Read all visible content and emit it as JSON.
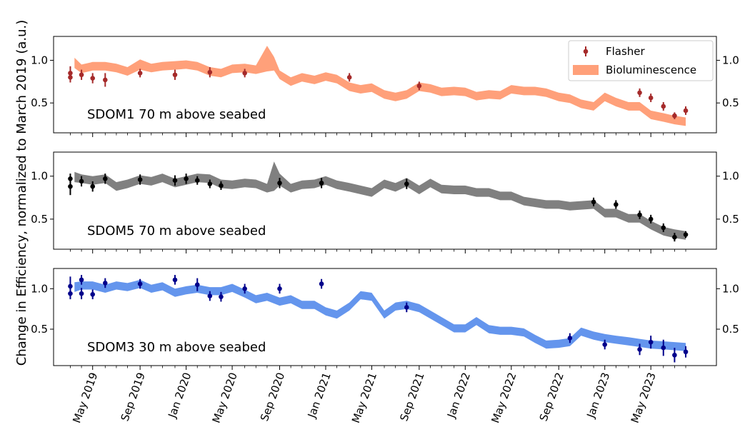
{
  "figure": {
    "ylabel": "Change in Efficiency, normalized to March 2019 (a.u.)",
    "legend": {
      "flasher_label": "Flasher",
      "bio_label": "Bioluminescence",
      "placement": "top-right of first panel"
    }
  },
  "chart_data": [
    {
      "type": "line",
      "panel_label": "SDOM1 70 m above seabed",
      "band_color": "#FFA07A",
      "flasher_color": "#A52A2A",
      "ylim": [
        0.15,
        1.28
      ],
      "yticks": [
        0.5,
        1.0
      ],
      "ytick_labels": [
        "0.5",
        "1.0"
      ],
      "band_x": [
        2019.2,
        2019.25,
        2019.33,
        2019.42,
        2019.5,
        2019.58,
        2019.67,
        2019.75,
        2019.83,
        2019.92,
        2020.0,
        2020.08,
        2020.17,
        2020.25,
        2020.33,
        2020.42,
        2020.5,
        2020.58,
        2020.63,
        2020.67,
        2020.75,
        2020.83,
        2020.92,
        2021.0,
        2021.08,
        2021.17,
        2021.25,
        2021.33,
        2021.42,
        2021.5,
        2021.58,
        2021.67,
        2021.75,
        2021.83,
        2021.92,
        2022.0,
        2022.08,
        2022.17,
        2022.25,
        2022.33,
        2022.42,
        2022.5,
        2022.58,
        2022.67,
        2022.75,
        2022.83,
        2022.92,
        2023.0,
        2023.08,
        2023.17,
        2023.25,
        2023.33,
        2023.42,
        2023.5,
        2023.58
      ],
      "band_mid": [
        0.97,
        0.9,
        0.93,
        0.93,
        0.91,
        0.87,
        0.95,
        0.91,
        0.93,
        0.94,
        0.95,
        0.93,
        0.87,
        0.85,
        0.9,
        0.91,
        0.89,
        1.02,
        0.96,
        0.83,
        0.75,
        0.8,
        0.77,
        0.81,
        0.78,
        0.69,
        0.66,
        0.68,
        0.6,
        0.57,
        0.6,
        0.69,
        0.67,
        0.63,
        0.64,
        0.63,
        0.58,
        0.6,
        0.59,
        0.66,
        0.64,
        0.64,
        0.62,
        0.57,
        0.55,
        0.49,
        0.46,
        0.57,
        0.51,
        0.46,
        0.46,
        0.36,
        0.33,
        0.3,
        0.28
      ],
      "band_half": [
        0.06,
        0.05,
        0.05,
        0.05,
        0.05,
        0.05,
        0.06,
        0.05,
        0.05,
        0.05,
        0.05,
        0.05,
        0.05,
        0.05,
        0.05,
        0.05,
        0.05,
        0.15,
        0.08,
        0.05,
        0.05,
        0.05,
        0.05,
        0.05,
        0.05,
        0.05,
        0.05,
        0.05,
        0.05,
        0.05,
        0.05,
        0.05,
        0.05,
        0.05,
        0.05,
        0.05,
        0.05,
        0.05,
        0.05,
        0.05,
        0.05,
        0.05,
        0.05,
        0.05,
        0.05,
        0.05,
        0.05,
        0.05,
        0.05,
        0.05,
        0.05,
        0.05,
        0.05,
        0.05,
        0.05
      ],
      "flasher_x": [
        2019.17,
        2019.17,
        2019.25,
        2019.33,
        2019.42,
        2019.67,
        2019.92,
        2020.17,
        2020.42,
        2021.17,
        2021.67,
        2023.25,
        2023.33,
        2023.42,
        2023.5,
        2023.58
      ],
      "flasher_y": [
        0.85,
        0.8,
        0.83,
        0.79,
        0.77,
        0.85,
        0.83,
        0.86,
        0.85,
        0.8,
        0.7,
        0.62,
        0.56,
        0.46,
        0.35,
        0.41
      ],
      "flasher_err": [
        0.08,
        0.06,
        0.06,
        0.06,
        0.08,
        0.05,
        0.06,
        0.06,
        0.05,
        0.05,
        0.05,
        0.05,
        0.05,
        0.05,
        0.04,
        0.05
      ]
    },
    {
      "type": "line",
      "panel_label": "SDOM5 70 m above seabed",
      "band_color": "#808080",
      "flasher_color": "#000000",
      "ylim": [
        0.15,
        1.28
      ],
      "yticks": [
        0.5,
        1.0
      ],
      "ytick_labels": [
        "0.5",
        "1.0"
      ],
      "band_x": [
        2019.2,
        2019.25,
        2019.33,
        2019.42,
        2019.5,
        2019.58,
        2019.67,
        2019.75,
        2019.83,
        2019.92,
        2020.0,
        2020.08,
        2020.17,
        2020.25,
        2020.33,
        2020.42,
        2020.5,
        2020.58,
        2020.63,
        2020.67,
        2020.75,
        2020.83,
        2020.92,
        2021.0,
        2021.08,
        2021.17,
        2021.25,
        2021.33,
        2021.42,
        2021.5,
        2021.58,
        2021.67,
        2021.75,
        2021.83,
        2021.92,
        2022.0,
        2022.08,
        2022.17,
        2022.25,
        2022.33,
        2022.42,
        2022.5,
        2022.58,
        2022.67,
        2022.75,
        2022.83,
        2022.92,
        2023.0,
        2023.08,
        2023.17,
        2023.25,
        2023.33,
        2023.42,
        2023.5,
        2023.58
      ],
      "band_mid": [
        0.99,
        0.97,
        0.95,
        0.97,
        0.88,
        0.91,
        0.96,
        0.94,
        0.98,
        0.92,
        0.95,
        0.98,
        0.97,
        0.91,
        0.9,
        0.92,
        0.91,
        0.86,
        1.0,
        0.96,
        0.86,
        0.9,
        0.91,
        0.95,
        0.9,
        0.87,
        0.84,
        0.81,
        0.91,
        0.87,
        0.93,
        0.84,
        0.92,
        0.85,
        0.84,
        0.84,
        0.81,
        0.81,
        0.77,
        0.77,
        0.71,
        0.69,
        0.67,
        0.67,
        0.65,
        0.66,
        0.67,
        0.57,
        0.57,
        0.51,
        0.51,
        0.43,
        0.36,
        0.33,
        0.31
      ],
      "band_half": [
        0.06,
        0.05,
        0.05,
        0.05,
        0.05,
        0.05,
        0.05,
        0.05,
        0.05,
        0.05,
        0.05,
        0.05,
        0.05,
        0.05,
        0.05,
        0.05,
        0.05,
        0.05,
        0.17,
        0.07,
        0.05,
        0.05,
        0.05,
        0.05,
        0.05,
        0.05,
        0.05,
        0.05,
        0.05,
        0.05,
        0.05,
        0.05,
        0.05,
        0.05,
        0.05,
        0.05,
        0.05,
        0.05,
        0.05,
        0.05,
        0.05,
        0.05,
        0.05,
        0.05,
        0.05,
        0.05,
        0.05,
        0.05,
        0.05,
        0.05,
        0.05,
        0.05,
        0.05,
        0.05,
        0.05
      ],
      "flasher_x": [
        2019.17,
        2019.17,
        2019.25,
        2019.33,
        2019.42,
        2019.67,
        2019.92,
        2020.0,
        2020.08,
        2020.17,
        2020.25,
        2020.67,
        2020.97,
        2021.58,
        2022.92,
        2023.08,
        2023.25,
        2023.33,
        2023.42,
        2023.5,
        2023.58
      ],
      "flasher_y": [
        0.97,
        0.88,
        0.94,
        0.88,
        0.97,
        0.96,
        0.95,
        0.97,
        0.95,
        0.91,
        0.89,
        0.92,
        0.92,
        0.91,
        0.7,
        0.67,
        0.55,
        0.5,
        0.4,
        0.29,
        0.32
      ],
      "flasher_err": [
        0.06,
        0.1,
        0.06,
        0.06,
        0.06,
        0.06,
        0.06,
        0.06,
        0.05,
        0.05,
        0.05,
        0.06,
        0.06,
        0.06,
        0.05,
        0.05,
        0.05,
        0.05,
        0.05,
        0.05,
        0.04
      ]
    },
    {
      "type": "line",
      "panel_label": "SDOM3 30 m above seabed",
      "band_color": "#6495ED",
      "flasher_color": "#00008B",
      "ylim": [
        0.05,
        1.25
      ],
      "yticks": [
        0.5,
        1.0
      ],
      "ytick_labels": [
        "0.5",
        "1.0"
      ],
      "band_x": [
        2019.2,
        2019.25,
        2019.33,
        2019.42,
        2019.5,
        2019.58,
        2019.67,
        2019.75,
        2019.83,
        2019.92,
        2020.0,
        2020.08,
        2020.17,
        2020.25,
        2020.33,
        2020.42,
        2020.5,
        2020.58,
        2020.67,
        2020.75,
        2020.83,
        2020.92,
        2021.0,
        2021.08,
        2021.17,
        2021.25,
        2021.33,
        2021.42,
        2021.5,
        2021.58,
        2021.67,
        2021.75,
        2021.83,
        2021.92,
        2022.0,
        2022.08,
        2022.17,
        2022.25,
        2022.33,
        2022.42,
        2022.5,
        2022.58,
        2022.67,
        2022.75,
        2022.83,
        2022.92,
        2023.0,
        2023.08,
        2023.17,
        2023.25,
        2023.33,
        2023.42,
        2023.5,
        2023.58
      ],
      "band_mid": [
        1.02,
        1.04,
        1.04,
        1.0,
        1.04,
        1.02,
        1.06,
        1.0,
        1.03,
        0.95,
        0.98,
        1.0,
        0.97,
        0.97,
        1.01,
        0.94,
        0.87,
        0.9,
        0.84,
        0.87,
        0.8,
        0.8,
        0.72,
        0.68,
        0.78,
        0.92,
        0.9,
        0.68,
        0.78,
        0.8,
        0.76,
        0.68,
        0.6,
        0.51,
        0.51,
        0.6,
        0.5,
        0.48,
        0.48,
        0.46,
        0.38,
        0.31,
        0.32,
        0.34,
        0.47,
        0.42,
        0.39,
        0.37,
        0.35,
        0.33,
        0.31,
        0.3,
        0.29,
        0.28
      ],
      "band_half": [
        0.06,
        0.05,
        0.05,
        0.05,
        0.05,
        0.05,
        0.05,
        0.05,
        0.05,
        0.05,
        0.05,
        0.05,
        0.05,
        0.05,
        0.05,
        0.05,
        0.05,
        0.05,
        0.05,
        0.05,
        0.05,
        0.05,
        0.05,
        0.05,
        0.05,
        0.05,
        0.05,
        0.05,
        0.05,
        0.05,
        0.05,
        0.05,
        0.05,
        0.05,
        0.05,
        0.05,
        0.05,
        0.05,
        0.05,
        0.05,
        0.05,
        0.05,
        0.05,
        0.05,
        0.05,
        0.05,
        0.05,
        0.05,
        0.05,
        0.05,
        0.05,
        0.05,
        0.05,
        0.05
      ],
      "flasher_x": [
        2019.17,
        2019.17,
        2019.25,
        2019.25,
        2019.33,
        2019.42,
        2019.67,
        2019.92,
        2020.08,
        2020.17,
        2020.25,
        2020.42,
        2020.67,
        2020.97,
        2021.58,
        2022.75,
        2023.0,
        2023.25,
        2023.33,
        2023.42,
        2023.5,
        2023.58
      ],
      "flasher_y": [
        1.03,
        0.94,
        1.11,
        0.94,
        0.93,
        1.07,
        1.06,
        1.11,
        1.05,
        0.91,
        0.9,
        1.0,
        1.0,
        1.06,
        0.77,
        0.39,
        0.31,
        0.25,
        0.34,
        0.27,
        0.18,
        0.22
      ],
      "flasher_err": [
        0.12,
        0.07,
        0.06,
        0.07,
        0.06,
        0.06,
        0.06,
        0.06,
        0.08,
        0.06,
        0.06,
        0.06,
        0.06,
        0.06,
        0.06,
        0.06,
        0.06,
        0.07,
        0.08,
        0.1,
        0.09,
        0.07
      ]
    }
  ],
  "x_axis": {
    "xlim": [
      2019.05,
      2023.8
    ],
    "ticks": [
      2019.33,
      2019.67,
      2020.0,
      2020.33,
      2020.67,
      2021.0,
      2021.33,
      2021.67,
      2022.0,
      2022.33,
      2022.67,
      2023.0,
      2023.33
    ],
    "tick_labels": [
      "May 2019",
      "Sep 2019",
      "Jan 2020",
      "May 2020",
      "Sep 2020",
      "Jan 2021",
      "May 2021",
      "Sep 2021",
      "Jan 2022",
      "May 2022",
      "Sep 2022",
      "Jan 2023",
      "May 2023"
    ],
    "minor_ticks": [
      2019.17,
      2019.25,
      2019.42,
      2019.5,
      2019.58,
      2019.75,
      2019.83,
      2019.92,
      2020.08,
      2020.17,
      2020.25,
      2020.42,
      2020.5,
      2020.58,
      2020.75,
      2020.83,
      2020.92,
      2021.08,
      2021.17,
      2021.25,
      2021.42,
      2021.5,
      2021.58,
      2021.75,
      2021.83,
      2021.92,
      2022.08,
      2022.17,
      2022.25,
      2022.42,
      2022.5,
      2022.58,
      2022.75,
      2022.83,
      2022.92,
      2023.08,
      2023.17,
      2023.25,
      2023.42,
      2023.5,
      2023.58
    ]
  }
}
